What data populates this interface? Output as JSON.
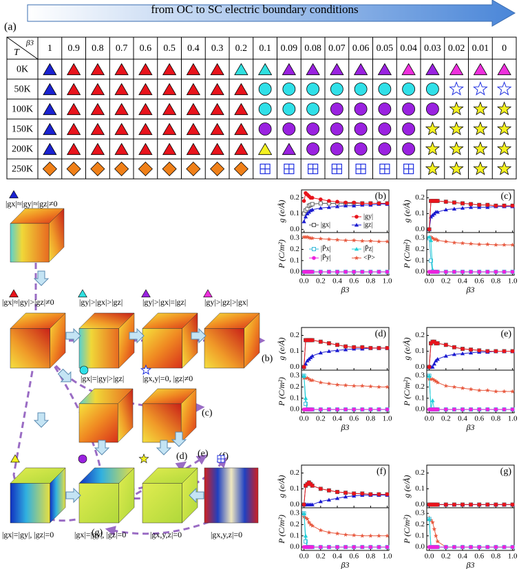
{
  "header": {
    "label": "(a)",
    "arrow_text": "from OC to SC electric boundary conditions"
  },
  "table": {
    "corner": [
      "T",
      "β3"
    ],
    "columns": [
      1,
      0.9,
      0.8,
      0.7,
      0.6,
      0.5,
      0.4,
      0.3,
      0.2,
      0.1,
      0.09,
      0.08,
      0.07,
      0.06,
      0.05,
      0.04,
      0.03,
      0.02,
      0.01,
      0
    ],
    "rows": [
      "0K",
      "50K",
      "100K",
      "150K",
      "200K",
      "250K"
    ]
  },
  "diagram": {
    "states": [
      "|gx|≈|gy|≈|gz|≠0",
      "|gx|≈|gy|>|gz|≠0",
      "|gy|>|gx|>|gz|",
      "|gy|>|gx|=|gz|",
      "|gy|>|gz|>|gx|",
      "|gx|=|gy|>|gz|",
      "|gx,y|=0, |gz|≠0",
      "|gx|=|gy|, |gz|=0",
      "|gx|=|gy|, |gz|=0",
      "|gx,y,z|=0",
      "|gx,y,z|=0"
    ],
    "links": [
      "(b)",
      "(c)",
      "(d)",
      "(e)",
      "(f)",
      "(g)"
    ]
  },
  "plots": {
    "x_label": "β3",
    "g_label": "g (e/Å)",
    "P_label": "P (C/m²)",
    "x": [
      0,
      0.02,
      0.04,
      0.06,
      0.08,
      0.1,
      0.2,
      0.3,
      0.4,
      0.5,
      0.6,
      0.7,
      0.8,
      0.9,
      1.0
    ],
    "xlim": [
      -0.03,
      1.02
    ],
    "xticks": [
      {
        "value": 0,
        "label": "0.0"
      },
      0.2,
      0.4,
      0.6,
      0.8,
      {
        "value": 1,
        "label": "1.0"
      }
    ],
    "g_ylim": [
      -0.02,
      0.25
    ],
    "g_yticks": [
      {
        "value": 0,
        "label": "0.0"
      },
      0.1,
      0.2
    ],
    "P_ylim": [
      -0.03,
      0.35
    ],
    "P_yticks": [
      {
        "value": 0,
        "label": "0.0"
      },
      0.1,
      0.2,
      0.3
    ],
    "g_series": [
      {
        "name": "|gx|",
        "color": "#555555"
      },
      {
        "name": "|gy|",
        "color": "#e8141c"
      },
      {
        "name": "|gz|",
        "color": "#1a1ad0"
      }
    ],
    "P_series": [
      {
        "name": "|P̄x|",
        "color": "#33b8d8"
      },
      {
        "name": "|P̄z|",
        "color": "#22d0d8"
      },
      {
        "name": "|P̄y|",
        "color": "#ee22dd"
      },
      {
        "name": "<P>",
        "color": "#e85a40"
      }
    ],
    "panels": [
      {
        "label": "(b)",
        "g": [
          [
            0.1,
            0.12,
            0.13,
            0.15,
            0.155,
            0.16,
            0.165,
            0.165,
            0.165,
            0.165,
            0.165,
            0.165,
            0.165,
            0.165,
            0.165
          ],
          [
            0.18,
            0.23,
            0.22,
            0.21,
            0.2,
            0.2,
            0.19,
            0.18,
            0.175,
            0.17,
            0.17,
            0.165,
            0.165,
            0.165,
            0.165
          ],
          [
            0.05,
            0.08,
            0.1,
            0.11,
            0.12,
            0.125,
            0.135,
            0.14,
            0.145,
            0.15,
            0.15,
            0.155,
            0.155,
            0.16,
            0.16
          ]
        ],
        "P": [
          [
            0,
            0,
            0,
            0,
            0,
            0,
            0,
            0,
            0,
            0,
            0,
            0,
            0,
            0,
            0
          ],
          [
            0,
            0,
            0,
            0,
            0,
            0,
            0,
            0,
            0,
            0,
            0,
            0,
            0,
            0,
            0
          ],
          [
            0,
            0,
            0,
            0,
            0,
            0,
            0,
            0,
            0,
            0,
            0,
            0,
            0,
            0,
            0
          ],
          [
            0.31,
            0.31,
            0.31,
            0.305,
            0.3,
            0.3,
            0.295,
            0.29,
            0.285,
            0.28,
            0.28,
            0.275,
            0.275,
            0.27,
            0.27
          ]
        ]
      },
      {
        "label": "(c)",
        "g": [
          [
            0,
            0.18,
            0.18,
            0.18,
            0.18,
            0.18,
            0.175,
            0.17,
            0.165,
            0.16,
            0.155,
            0.155,
            0.15,
            0.15,
            0.15
          ],
          [
            0,
            0.18,
            0.18,
            0.18,
            0.18,
            0.18,
            0.175,
            0.17,
            0.165,
            0.16,
            0.155,
            0.155,
            0.15,
            0.15,
            0.15
          ],
          [
            0,
            0.08,
            0.09,
            0.1,
            0.11,
            0.11,
            0.125,
            0.13,
            0.135,
            0.14,
            0.14,
            0.14,
            0.145,
            0.145,
            0.145
          ]
        ],
        "P": [
          [
            0.3,
            0.1,
            0,
            0,
            0,
            0,
            0,
            0,
            0,
            0,
            0,
            0,
            0,
            0,
            0
          ],
          [
            0.31,
            0.28,
            0.02,
            0,
            0,
            0,
            0,
            0,
            0,
            0,
            0,
            0,
            0,
            0,
            0
          ],
          [
            0,
            0,
            0,
            0,
            0,
            0,
            0,
            0,
            0,
            0,
            0,
            0,
            0,
            0,
            0
          ],
          [
            0.3,
            0.31,
            0.3,
            0.29,
            0.29,
            0.28,
            0.27,
            0.26,
            0.255,
            0.25,
            0.245,
            0.245,
            0.24,
            0.24,
            0.24
          ]
        ]
      },
      {
        "label": "(d)",
        "g": [
          [
            0,
            0.17,
            0.17,
            0.17,
            0.17,
            0.17,
            0.16,
            0.15,
            0.14,
            0.13,
            0.125,
            0.125,
            0.12,
            0.12,
            0.12
          ],
          [
            0,
            0.17,
            0.17,
            0.17,
            0.17,
            0.17,
            0.16,
            0.15,
            0.14,
            0.13,
            0.125,
            0.125,
            0.12,
            0.12,
            0.12
          ],
          [
            0,
            0.02,
            0.04,
            0.05,
            0.06,
            0.07,
            0.09,
            0.1,
            0.105,
            0.11,
            0.115,
            0.115,
            0.12,
            0.12,
            0.12
          ]
        ],
        "P": [
          [
            0.3,
            0.05,
            0,
            0,
            0,
            0,
            0,
            0,
            0,
            0,
            0,
            0,
            0,
            0,
            0
          ],
          [
            0.3,
            0.1,
            0,
            0,
            0,
            0,
            0,
            0,
            0,
            0,
            0,
            0,
            0,
            0,
            0
          ],
          [
            0,
            0,
            0,
            0,
            0,
            0,
            0,
            0,
            0,
            0,
            0,
            0,
            0,
            0,
            0
          ],
          [
            0.28,
            0.28,
            0.28,
            0.27,
            0.26,
            0.26,
            0.24,
            0.23,
            0.22,
            0.215,
            0.21,
            0.21,
            0.205,
            0.2,
            0.2
          ]
        ]
      },
      {
        "label": "(e)",
        "g": [
          [
            0,
            0.15,
            0.16,
            0.16,
            0.15,
            0.15,
            0.14,
            0.125,
            0.115,
            0.11,
            0.105,
            0.1,
            0.1,
            0.1,
            0.1
          ],
          [
            0,
            0.15,
            0.16,
            0.16,
            0.15,
            0.15,
            0.14,
            0.125,
            0.115,
            0.11,
            0.105,
            0.1,
            0.1,
            0.1,
            0.1
          ],
          [
            0,
            0,
            0,
            0.02,
            0.04,
            0.05,
            0.07,
            0.08,
            0.085,
            0.09,
            0.095,
            0.095,
            0.1,
            0.1,
            0.1
          ]
        ],
        "P": [
          [
            0.3,
            0,
            0,
            0,
            0,
            0,
            0,
            0,
            0,
            0,
            0,
            0,
            0,
            0,
            0
          ],
          [
            0.3,
            0,
            0.08,
            0,
            0,
            0,
            0,
            0,
            0,
            0,
            0,
            0,
            0,
            0,
            0
          ],
          [
            0,
            0,
            0,
            0,
            0,
            0,
            0,
            0,
            0,
            0,
            0,
            0,
            0,
            0,
            0
          ],
          [
            0.27,
            0.27,
            0.27,
            0.26,
            0.25,
            0.24,
            0.21,
            0.2,
            0.19,
            0.18,
            0.17,
            0.17,
            0.16,
            0.16,
            0.16
          ]
        ]
      },
      {
        "label": "(f)",
        "g": [
          [
            0,
            0.12,
            0.13,
            0.14,
            0.13,
            0.12,
            0.1,
            0.09,
            0.08,
            0.075,
            0.07,
            0.07,
            0.065,
            0.065,
            0.065
          ],
          [
            0,
            0.12,
            0.13,
            0.14,
            0.13,
            0.12,
            0.1,
            0.09,
            0.08,
            0.075,
            0.07,
            0.07,
            0.065,
            0.065,
            0.065
          ],
          [
            0,
            0,
            0,
            0,
            0,
            0,
            0.02,
            0.03,
            0.04,
            0.05,
            0.055,
            0.06,
            0.06,
            0.06,
            0.06
          ]
        ],
        "P": [
          [
            0.3,
            0.05,
            0,
            0,
            0,
            0,
            0,
            0,
            0,
            0,
            0,
            0,
            0,
            0,
            0
          ],
          [
            0.3,
            0.1,
            0,
            0,
            0,
            0,
            0,
            0,
            0,
            0,
            0,
            0,
            0,
            0,
            0
          ],
          [
            0,
            0,
            0,
            0,
            0,
            0,
            0,
            0,
            0,
            0,
            0,
            0,
            0,
            0,
            0
          ],
          [
            0.27,
            0.26,
            0.25,
            0.22,
            0.2,
            0.19,
            0.15,
            0.13,
            0.12,
            0.11,
            0.105,
            0.1,
            0.1,
            0.1,
            0.1
          ]
        ]
      },
      {
        "label": "(g)",
        "g": [
          [
            0,
            0,
            0,
            0,
            0,
            0,
            0,
            0,
            0,
            0,
            0,
            0,
            0,
            0,
            0
          ],
          [
            0,
            0,
            0,
            0,
            0,
            0,
            0,
            0,
            0,
            0,
            0,
            0,
            0,
            0,
            0
          ],
          [
            0,
            0,
            0,
            0,
            0,
            0,
            0,
            0,
            0,
            0,
            0,
            0,
            0,
            0,
            0
          ]
        ],
        "P": [
          [
            0.25,
            0,
            0,
            0,
            0,
            0,
            0,
            0,
            0,
            0,
            0,
            0,
            0,
            0,
            0
          ],
          [
            0.25,
            0,
            0,
            0,
            0,
            0,
            0,
            0,
            0,
            0,
            0,
            0,
            0,
            0,
            0
          ],
          [
            0,
            0,
            0,
            0,
            0,
            0,
            0,
            0,
            0,
            0,
            0,
            0,
            0,
            0,
            0
          ],
          [
            0.26,
            0.24,
            0.22,
            0.16,
            0.1,
            0.05,
            0,
            0,
            0,
            0,
            0,
            0,
            0,
            0,
            0
          ]
        ]
      }
    ]
  }
}
